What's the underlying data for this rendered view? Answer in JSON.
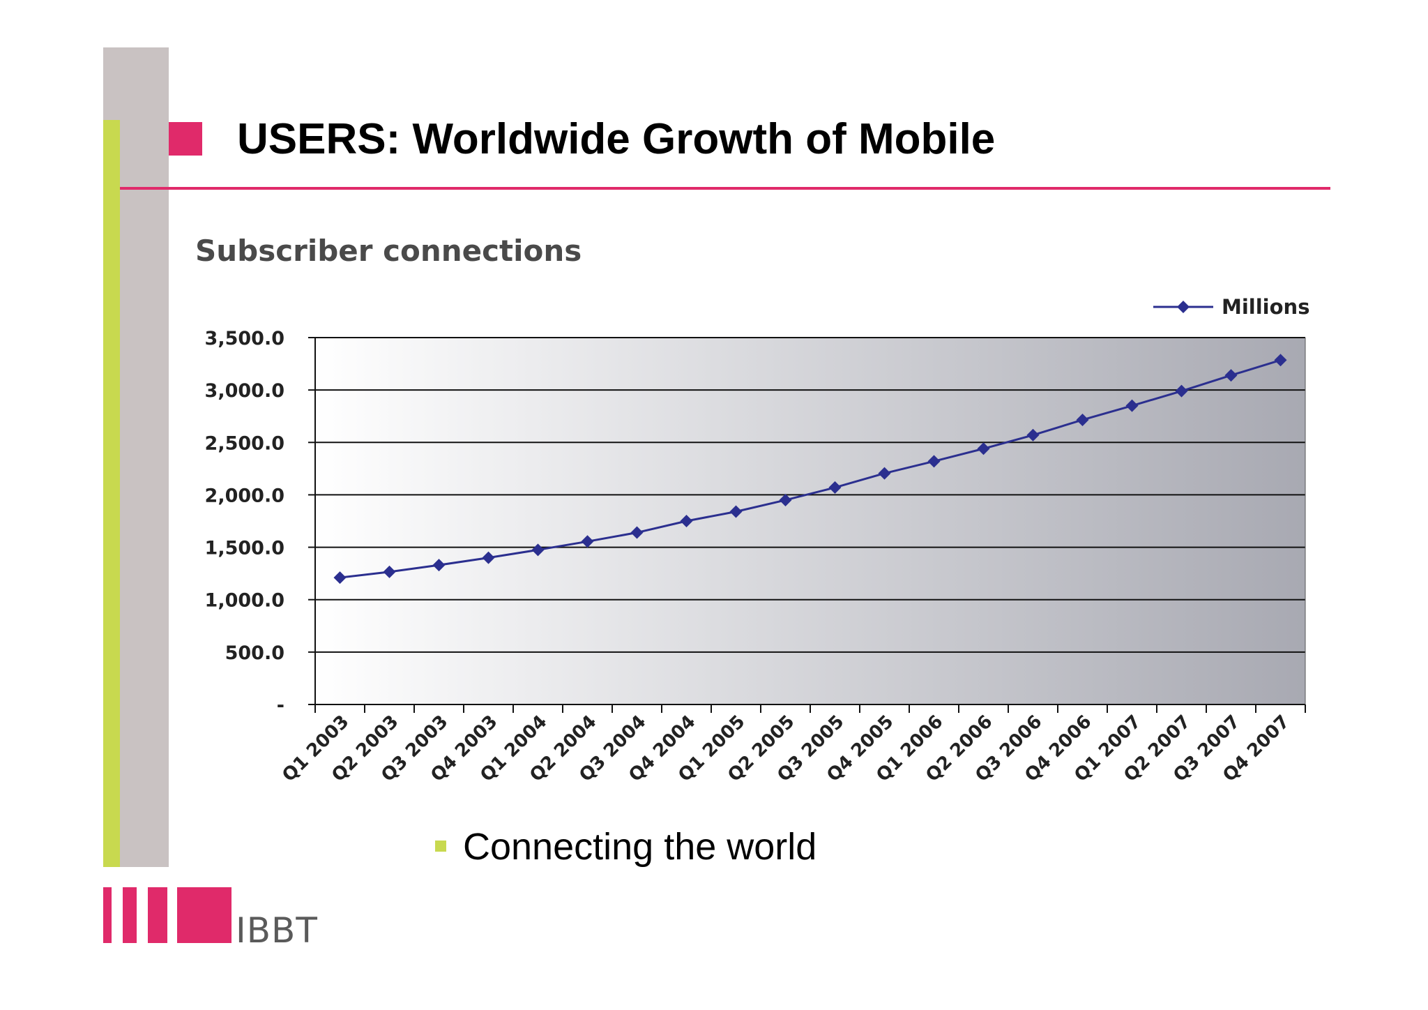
{
  "slide": {
    "title": "USERS: Worldwide Growth of Mobile",
    "bullet": "Connecting the world",
    "logo_text": "IBBT",
    "colors": {
      "accent_pink": "#e02a6a",
      "accent_green": "#c8d94f",
      "side_grey": "#c9c2c2"
    }
  },
  "chart_data": {
    "type": "line",
    "title": "Subscriber connections",
    "categories": [
      "Q1 2003",
      "Q2 2003",
      "Q3 2003",
      "Q4 2003",
      "Q1 2004",
      "Q2 2004",
      "Q3 2004",
      "Q4 2004",
      "Q1 2005",
      "Q2 2005",
      "Q3 2005",
      "Q4 2005",
      "Q1 2006",
      "Q2 2006",
      "Q3 2006",
      "Q4 2006",
      "Q1 2007",
      "Q2 2007",
      "Q3 2007",
      "Q4 2007"
    ],
    "series": [
      {
        "name": "Millions",
        "color": "#2b2f8f",
        "values": [
          1210,
          1265,
          1330,
          1400,
          1475,
          1555,
          1640,
          1750,
          1840,
          1950,
          2070,
          2205,
          2320,
          2440,
          2570,
          2715,
          2850,
          2990,
          3140,
          3285
        ]
      }
    ],
    "yticks": [
      "-",
      "500.0",
      "1,000.0",
      "1,500.0",
      "2,000.0",
      "2,500.0",
      "3,000.0",
      "3,500.0"
    ],
    "ylim": [
      0,
      3500
    ],
    "grid": true,
    "legend": "top-right",
    "xlabel": "",
    "ylabel": ""
  }
}
